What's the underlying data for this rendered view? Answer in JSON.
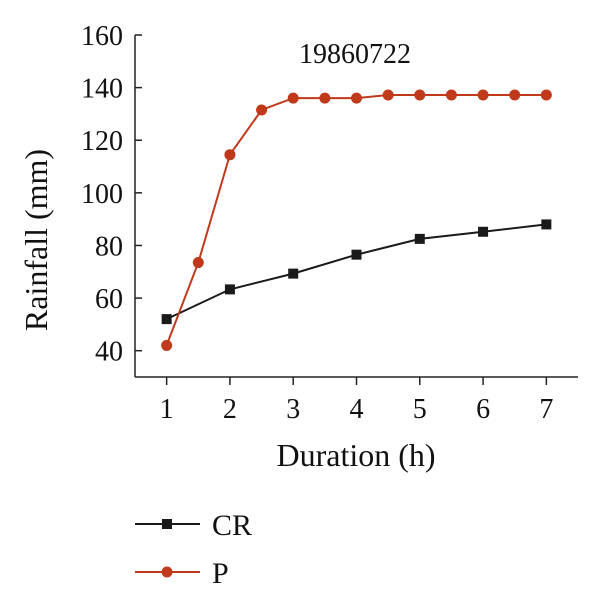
{
  "chart_data": {
    "type": "line",
    "title": "19860722",
    "xlabel": "Duration (h)",
    "ylabel": "Rainfall (mm)",
    "xlim": [
      0.5,
      7.5
    ],
    "ylim": [
      30,
      160
    ],
    "x_ticks": [
      "1",
      "2",
      "3",
      "4",
      "5",
      "6",
      "7"
    ],
    "y_ticks": [
      "40",
      "60",
      "80",
      "100",
      "120",
      "140",
      "160"
    ],
    "grid": false,
    "legend_position": "bottom-left",
    "series": [
      {
        "name": "CR",
        "color": "#1a1a1a",
        "marker": "square",
        "x": [
          1,
          2,
          3,
          4,
          5,
          6,
          7
        ],
        "y": [
          52,
          63.3,
          69.3,
          76.5,
          82.5,
          85.2,
          88
        ]
      },
      {
        "name": "P",
        "color": "#c0391b",
        "marker": "circle",
        "x": [
          1,
          1.5,
          2,
          2.5,
          3,
          3.5,
          4,
          4.5,
          5,
          5.5,
          6,
          6.5,
          7
        ],
        "y": [
          42,
          73.5,
          114.5,
          131.5,
          136,
          136,
          136,
          137.2,
          137.2,
          137.2,
          137.2,
          137.2,
          137.2
        ]
      }
    ]
  }
}
